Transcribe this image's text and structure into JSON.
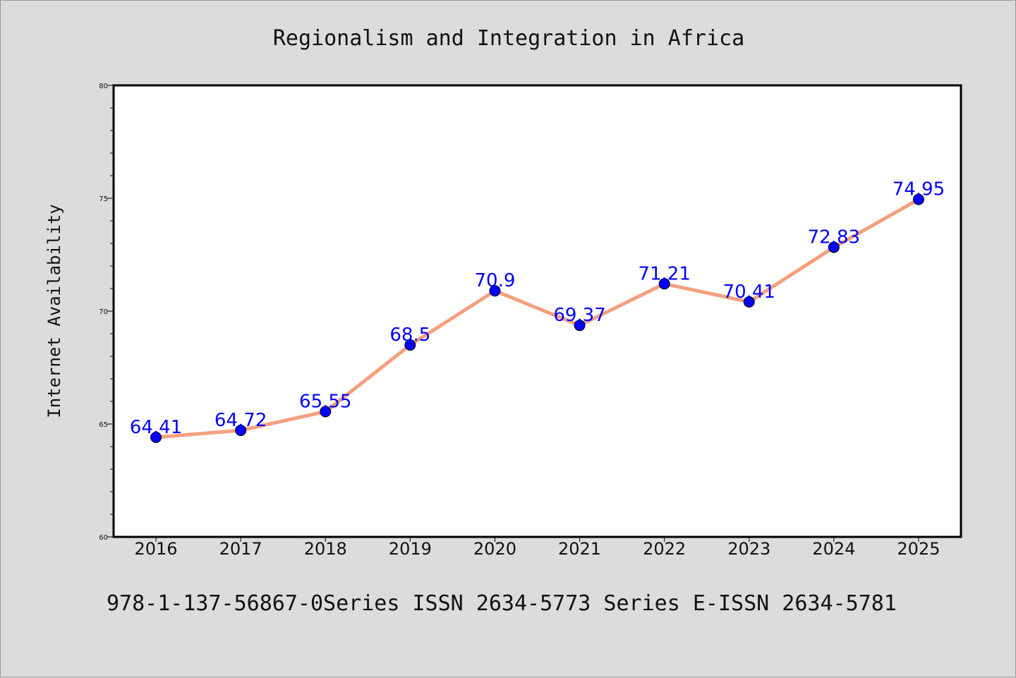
{
  "chart_data": {
    "type": "line",
    "title": "Regionalism and Integration in Africa",
    "xlabel": "",
    "ylabel": "Internet Availability",
    "x": [
      "2016",
      "2017",
      "2018",
      "2019",
      "2020",
      "2021",
      "2022",
      "2023",
      "2024",
      "2025"
    ],
    "series": [
      {
        "values": [
          64.41,
          64.72,
          65.55,
          68.5,
          70.9,
          69.37,
          71.21,
          70.41,
          72.83,
          74.95
        ],
        "data_labels": [
          "64.41",
          "64.72",
          "65.55",
          "68.5",
          "70.9",
          "69.37",
          "71.21",
          "70.41",
          "72.83",
          "74.95"
        ],
        "line_color": "#f4a07f",
        "marker_color": "#0000ff"
      }
    ],
    "ylim": [
      60,
      80
    ],
    "yticks": [
      "60",
      "65",
      "70",
      "75",
      "80"
    ],
    "grid": false,
    "footer": "978-1-137-56867-0Series ISSN 2634-5773 Series E-ISSN 2634-5781"
  },
  "colors": {
    "background": "#dcdcdc",
    "plot_area": "#ffffff",
    "line": "#f4a07f",
    "marker": "#0000ff",
    "data_label": "#0000ff"
  }
}
